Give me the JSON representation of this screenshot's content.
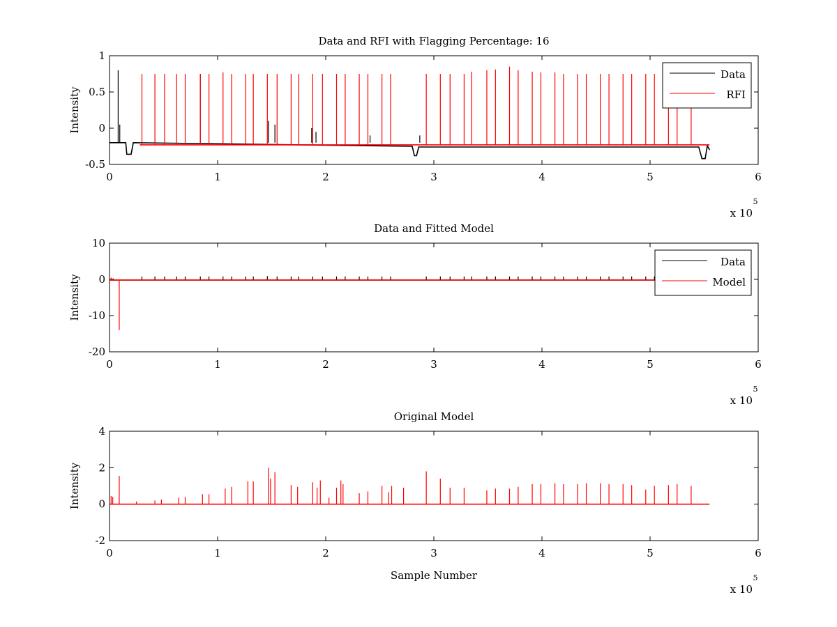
{
  "chart_data": [
    {
      "type": "line",
      "title": "Data and RFI with Flagging Percentage: 16",
      "xlabel": "",
      "ylabel": "Intensity",
      "xlim": [
        0,
        600000
      ],
      "ylim": [
        -0.5,
        1
      ],
      "x_ticks": [
        "0",
        "1",
        "2",
        "3",
        "4",
        "5",
        "6"
      ],
      "y_ticks": [
        "-0.5",
        "0",
        "0.5",
        "1"
      ],
      "x_multiplier": {
        "base": "x 10",
        "exponent": "5"
      },
      "grid": false,
      "legend_position": "top-right",
      "series": [
        {
          "name": "Data",
          "color": "#000000",
          "baseline": [
            [
              0,
              -0.2
            ],
            [
              15000,
              -0.2
            ],
            [
              16000,
              -0.36
            ],
            [
              20000,
              -0.36
            ],
            [
              22000,
              -0.2
            ],
            [
              280000,
              -0.25
            ],
            [
              282000,
              -0.38
            ],
            [
              284000,
              -0.38
            ],
            [
              286000,
              -0.26
            ],
            [
              545000,
              -0.26
            ],
            [
              548000,
              -0.42
            ],
            [
              551000,
              -0.42
            ],
            [
              553000,
              -0.24
            ],
            [
              555000,
              -0.3
            ]
          ],
          "spikes": [
            [
              8000,
              0.8
            ],
            [
              9500,
              0.05
            ],
            [
              84000,
              0.75
            ],
            [
              147000,
              0.1
            ],
            [
              153000,
              0.05
            ],
            [
              187000,
              0.0
            ],
            [
              191000,
              -0.05
            ],
            [
              241000,
              -0.1
            ],
            [
              287000,
              -0.1
            ]
          ]
        },
        {
          "name": "RFI",
          "color": "#ff0000",
          "x_range": [
            28000,
            555000
          ],
          "level": -0.23,
          "spikes": [
            [
              30000,
              0.75
            ],
            [
              42000,
              0.75
            ],
            [
              51000,
              0.75
            ],
            [
              62000,
              0.75
            ],
            [
              70000,
              0.75
            ],
            [
              84000,
              0.75
            ],
            [
              92000,
              0.75
            ],
            [
              105000,
              0.77
            ],
            [
              113000,
              0.75
            ],
            [
              126000,
              0.75
            ],
            [
              133000,
              0.75
            ],
            [
              146000,
              0.75
            ],
            [
              155000,
              0.75
            ],
            [
              168000,
              0.75
            ],
            [
              175000,
              0.75
            ],
            [
              188000,
              0.75
            ],
            [
              197000,
              0.75
            ],
            [
              210000,
              0.75
            ],
            [
              218000,
              0.75
            ],
            [
              231000,
              0.75
            ],
            [
              239000,
              0.75
            ],
            [
              252000,
              0.75
            ],
            [
              260000,
              0.75
            ],
            [
              293000,
              0.75
            ],
            [
              306000,
              0.75
            ],
            [
              315000,
              0.75
            ],
            [
              328000,
              0.75
            ],
            [
              335000,
              0.78
            ],
            [
              349000,
              0.8
            ],
            [
              357000,
              0.81
            ],
            [
              370000,
              0.85
            ],
            [
              378000,
              0.8
            ],
            [
              391000,
              0.78
            ],
            [
              399000,
              0.77
            ],
            [
              412000,
              0.77
            ],
            [
              420000,
              0.75
            ],
            [
              433000,
              0.75
            ],
            [
              441000,
              0.75
            ],
            [
              454000,
              0.75
            ],
            [
              462000,
              0.75
            ],
            [
              475000,
              0.75
            ],
            [
              483000,
              0.75
            ],
            [
              496000,
              0.75
            ],
            [
              504000,
              0.75
            ],
            [
              517000,
              0.3
            ],
            [
              525000,
              0.6
            ],
            [
              538000,
              0.3
            ]
          ]
        }
      ]
    },
    {
      "type": "line",
      "title": "Data and Fitted Model",
      "xlabel": "",
      "ylabel": "Intensity",
      "xlim": [
        0,
        600000
      ],
      "ylim": [
        -20,
        10
      ],
      "x_ticks": [
        "0",
        "1",
        "2",
        "3",
        "4",
        "5",
        "6"
      ],
      "y_ticks": [
        "-20",
        "-10",
        "0",
        "10"
      ],
      "x_multiplier": {
        "base": "x 10",
        "exponent": "5"
      },
      "grid": false,
      "legend_position": "top-right",
      "series": [
        {
          "name": "Data",
          "color": "#000000",
          "baseline": [
            [
              0,
              -0.2
            ],
            [
              555000,
              -0.2
            ]
          ],
          "spikes": [
            [
              30000,
              0.8
            ],
            [
              42000,
              0.8
            ],
            [
              51000,
              0.8
            ],
            [
              62000,
              0.8
            ],
            [
              70000,
              0.8
            ],
            [
              84000,
              0.8
            ],
            [
              92000,
              0.8
            ],
            [
              105000,
              0.8
            ],
            [
              113000,
              0.8
            ],
            [
              126000,
              0.8
            ],
            [
              133000,
              0.8
            ],
            [
              146000,
              0.9
            ],
            [
              155000,
              0.8
            ],
            [
              168000,
              0.8
            ],
            [
              175000,
              0.8
            ],
            [
              188000,
              0.8
            ],
            [
              197000,
              0.8
            ],
            [
              210000,
              0.8
            ],
            [
              218000,
              0.8
            ],
            [
              231000,
              0.8
            ],
            [
              239000,
              0.8
            ],
            [
              252000,
              0.8
            ],
            [
              260000,
              0.8
            ],
            [
              293000,
              0.8
            ],
            [
              306000,
              0.8
            ],
            [
              315000,
              0.8
            ],
            [
              328000,
              0.8
            ],
            [
              335000,
              0.8
            ],
            [
              349000,
              0.8
            ],
            [
              357000,
              0.8
            ],
            [
              370000,
              0.8
            ],
            [
              378000,
              0.8
            ],
            [
              391000,
              0.8
            ],
            [
              399000,
              0.8
            ],
            [
              412000,
              0.8
            ],
            [
              420000,
              0.8
            ],
            [
              433000,
              0.8
            ],
            [
              441000,
              0.8
            ],
            [
              454000,
              0.8
            ],
            [
              462000,
              0.8
            ],
            [
              475000,
              0.8
            ],
            [
              483000,
              0.8
            ],
            [
              496000,
              0.8
            ],
            [
              504000,
              0.8
            ],
            [
              517000,
              0.8
            ],
            [
              525000,
              0.8
            ],
            [
              538000,
              0.8
            ]
          ]
        },
        {
          "name": "Model",
          "color": "#ff0000",
          "baseline": [
            [
              0,
              -0.2
            ],
            [
              555000,
              -0.2
            ]
          ],
          "spikes": [
            [
              9000,
              -14
            ],
            [
              1500,
              0.5
            ],
            [
              3500,
              0.3
            ]
          ]
        }
      ]
    },
    {
      "type": "line",
      "title": "Original Model",
      "xlabel": "Sample Number",
      "ylabel": "Intensity",
      "xlim": [
        0,
        600000
      ],
      "ylim": [
        -2,
        4
      ],
      "x_ticks": [
        "0",
        "1",
        "2",
        "3",
        "4",
        "5",
        "6"
      ],
      "y_ticks": [
        "-2",
        "0",
        "2",
        "4"
      ],
      "x_multiplier": {
        "base": "x 10",
        "exponent": "5"
      },
      "grid": false,
      "legend_position": "none",
      "series": [
        {
          "color": "#ff0000",
          "baseline": [
            [
              0,
              0
            ],
            [
              555000,
              0
            ]
          ],
          "spikes": [
            [
              1500,
              0.45
            ],
            [
              3000,
              0.4
            ],
            [
              9000,
              1.55
            ],
            [
              25000,
              0.15
            ],
            [
              42000,
              0.2
            ],
            [
              48000,
              0.25
            ],
            [
              64000,
              0.35
            ],
            [
              70000,
              0.4
            ],
            [
              86000,
              0.55
            ],
            [
              92000,
              0.55
            ],
            [
              107000,
              0.85
            ],
            [
              113000,
              0.95
            ],
            [
              128000,
              1.25
            ],
            [
              133000,
              1.25
            ],
            [
              147000,
              2.0
            ],
            [
              149000,
              1.4
            ],
            [
              153000,
              1.75
            ],
            [
              168000,
              1.05
            ],
            [
              174000,
              0.95
            ],
            [
              188000,
              1.2
            ],
            [
              192000,
              0.9
            ],
            [
              195000,
              1.3
            ],
            [
              203000,
              0.35
            ],
            [
              210000,
              0.9
            ],
            [
              214000,
              1.3
            ],
            [
              216000,
              1.1
            ],
            [
              231000,
              0.6
            ],
            [
              239000,
              0.7
            ],
            [
              252000,
              1.0
            ],
            [
              258000,
              0.65
            ],
            [
              261000,
              1.0
            ],
            [
              272000,
              0.9
            ],
            [
              293000,
              1.8
            ],
            [
              306000,
              1.4
            ],
            [
              315000,
              0.9
            ],
            [
              328000,
              0.9
            ],
            [
              349000,
              0.75
            ],
            [
              357000,
              0.85
            ],
            [
              370000,
              0.85
            ],
            [
              378000,
              0.95
            ],
            [
              391000,
              1.1
            ],
            [
              399000,
              1.1
            ],
            [
              412000,
              1.15
            ],
            [
              420000,
              1.1
            ],
            [
              433000,
              1.1
            ],
            [
              441000,
              1.15
            ],
            [
              454000,
              1.15
            ],
            [
              462000,
              1.1
            ],
            [
              475000,
              1.1
            ],
            [
              483000,
              1.05
            ],
            [
              496000,
              0.8
            ],
            [
              504000,
              1.0
            ],
            [
              517000,
              1.05
            ],
            [
              525000,
              1.1
            ],
            [
              538000,
              1.0
            ]
          ]
        }
      ]
    }
  ]
}
